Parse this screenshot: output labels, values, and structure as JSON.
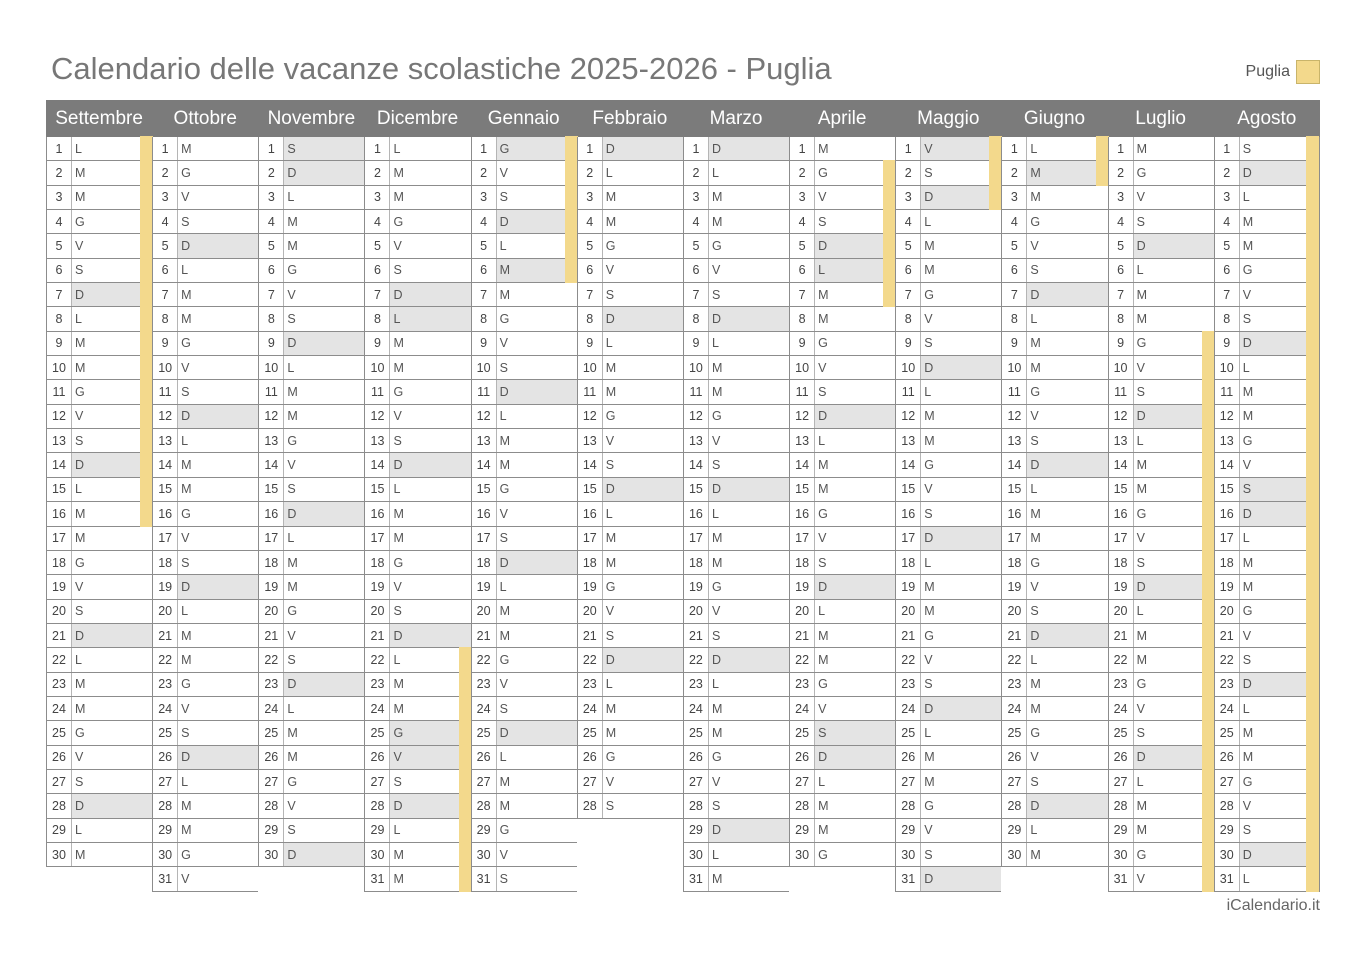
{
  "header": {
    "title": "Calendario delle vacanze scolastiche 2025-2026 - Puglia",
    "legend_label": "Puglia"
  },
  "footer": {
    "brand": "iCalendario.it"
  },
  "colors": {
    "header_bg": "#7b7b7b",
    "weekend_bg": "#e4e4e4",
    "vacation": "#f3d98c"
  },
  "months": [
    {
      "name": "Settembre",
      "start_weekday": 0,
      "days": 30,
      "vacation_days": [
        1,
        2,
        3,
        4,
        5,
        6,
        7,
        8,
        9,
        10,
        11,
        12,
        13,
        14,
        15,
        16
      ],
      "holidays": []
    },
    {
      "name": "Ottobre",
      "start_weekday": 2,
      "days": 31,
      "vacation_days": [],
      "holidays": []
    },
    {
      "name": "Novembre",
      "start_weekday": 5,
      "days": 30,
      "vacation_days": [],
      "holidays": [
        1
      ]
    },
    {
      "name": "Dicembre",
      "start_weekday": 0,
      "days": 31,
      "vacation_days": [
        22,
        23,
        24,
        25,
        26,
        27,
        28,
        29,
        30,
        31
      ],
      "holidays": [
        8,
        25,
        26
      ]
    },
    {
      "name": "Gennaio",
      "start_weekday": 3,
      "days": 31,
      "vacation_days": [
        1,
        2,
        3,
        4,
        5,
        6
      ],
      "holidays": [
        1,
        6
      ]
    },
    {
      "name": "Febbraio",
      "start_weekday": 6,
      "days": 28,
      "vacation_days": [],
      "holidays": []
    },
    {
      "name": "Marzo",
      "start_weekday": 6,
      "days": 31,
      "vacation_days": [],
      "holidays": []
    },
    {
      "name": "Aprile",
      "start_weekday": 2,
      "days": 30,
      "vacation_days": [
        2,
        3,
        4,
        5,
        6,
        7
      ],
      "holidays": [
        6,
        25
      ]
    },
    {
      "name": "Maggio",
      "start_weekday": 4,
      "days": 31,
      "vacation_days": [
        1,
        2,
        3
      ],
      "holidays": [
        1
      ]
    },
    {
      "name": "Giugno",
      "start_weekday": 0,
      "days": 30,
      "vacation_days": [
        1,
        2
      ],
      "holidays": [
        2
      ]
    },
    {
      "name": "Luglio",
      "start_weekday": 2,
      "days": 31,
      "vacation_days": [
        9,
        10,
        11,
        12,
        13,
        14,
        15,
        16,
        17,
        18,
        19,
        20,
        21,
        22,
        23,
        24,
        25,
        26,
        27,
        28,
        29,
        30,
        31
      ],
      "holidays": []
    },
    {
      "name": "Agosto",
      "start_weekday": 5,
      "days": 31,
      "vacation_days": [
        1,
        2,
        3,
        4,
        5,
        6,
        7,
        8,
        9,
        10,
        11,
        12,
        13,
        14,
        15,
        16,
        17,
        18,
        19,
        20,
        21,
        22,
        23,
        24,
        25,
        26,
        27,
        28,
        29,
        30,
        31
      ],
      "holidays": [
        15
      ]
    }
  ],
  "weekday_letters": [
    "L",
    "M",
    "M",
    "G",
    "V",
    "S",
    "D"
  ]
}
